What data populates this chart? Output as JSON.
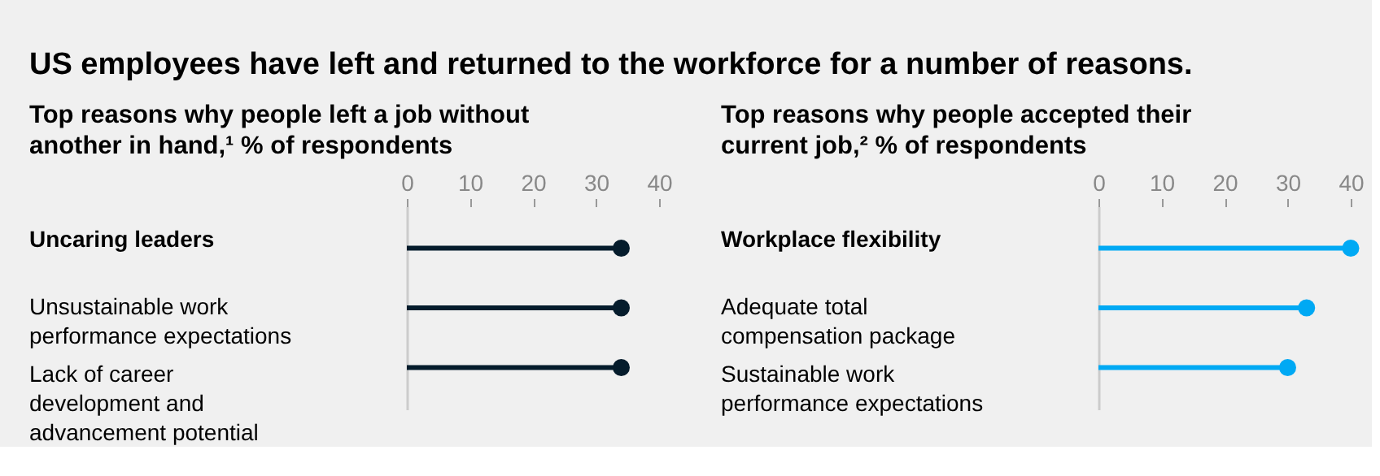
{
  "chart_data": [
    {
      "type": "lollipop",
      "title": "US employees have left and returned to the workforce for a number of reasons.",
      "subtitle": "Top reasons why people left a job without another in hand,¹ % of respondents",
      "orientation": "horizontal",
      "categories": [
        "Uncaring leaders",
        "Unsustainable work performance expectations",
        "Lack of career development and advancement potential"
      ],
      "values": [
        34,
        34,
        34
      ],
      "color": "#051c2c",
      "xlim": [
        0,
        40
      ],
      "xticks": [
        0,
        10,
        20,
        30,
        40
      ]
    },
    {
      "type": "lollipop",
      "subtitle": "Top reasons why people accepted their current job,² % of respondents",
      "orientation": "horizontal",
      "categories": [
        "Workplace flexibility",
        "Adequate total compensation package",
        "Sustainable work performance expectations"
      ],
      "values": [
        40,
        33,
        30
      ],
      "color": "#00a9f4",
      "xlim": [
        0,
        40
      ],
      "xticks": [
        0,
        10,
        20,
        30,
        40
      ]
    }
  ]
}
